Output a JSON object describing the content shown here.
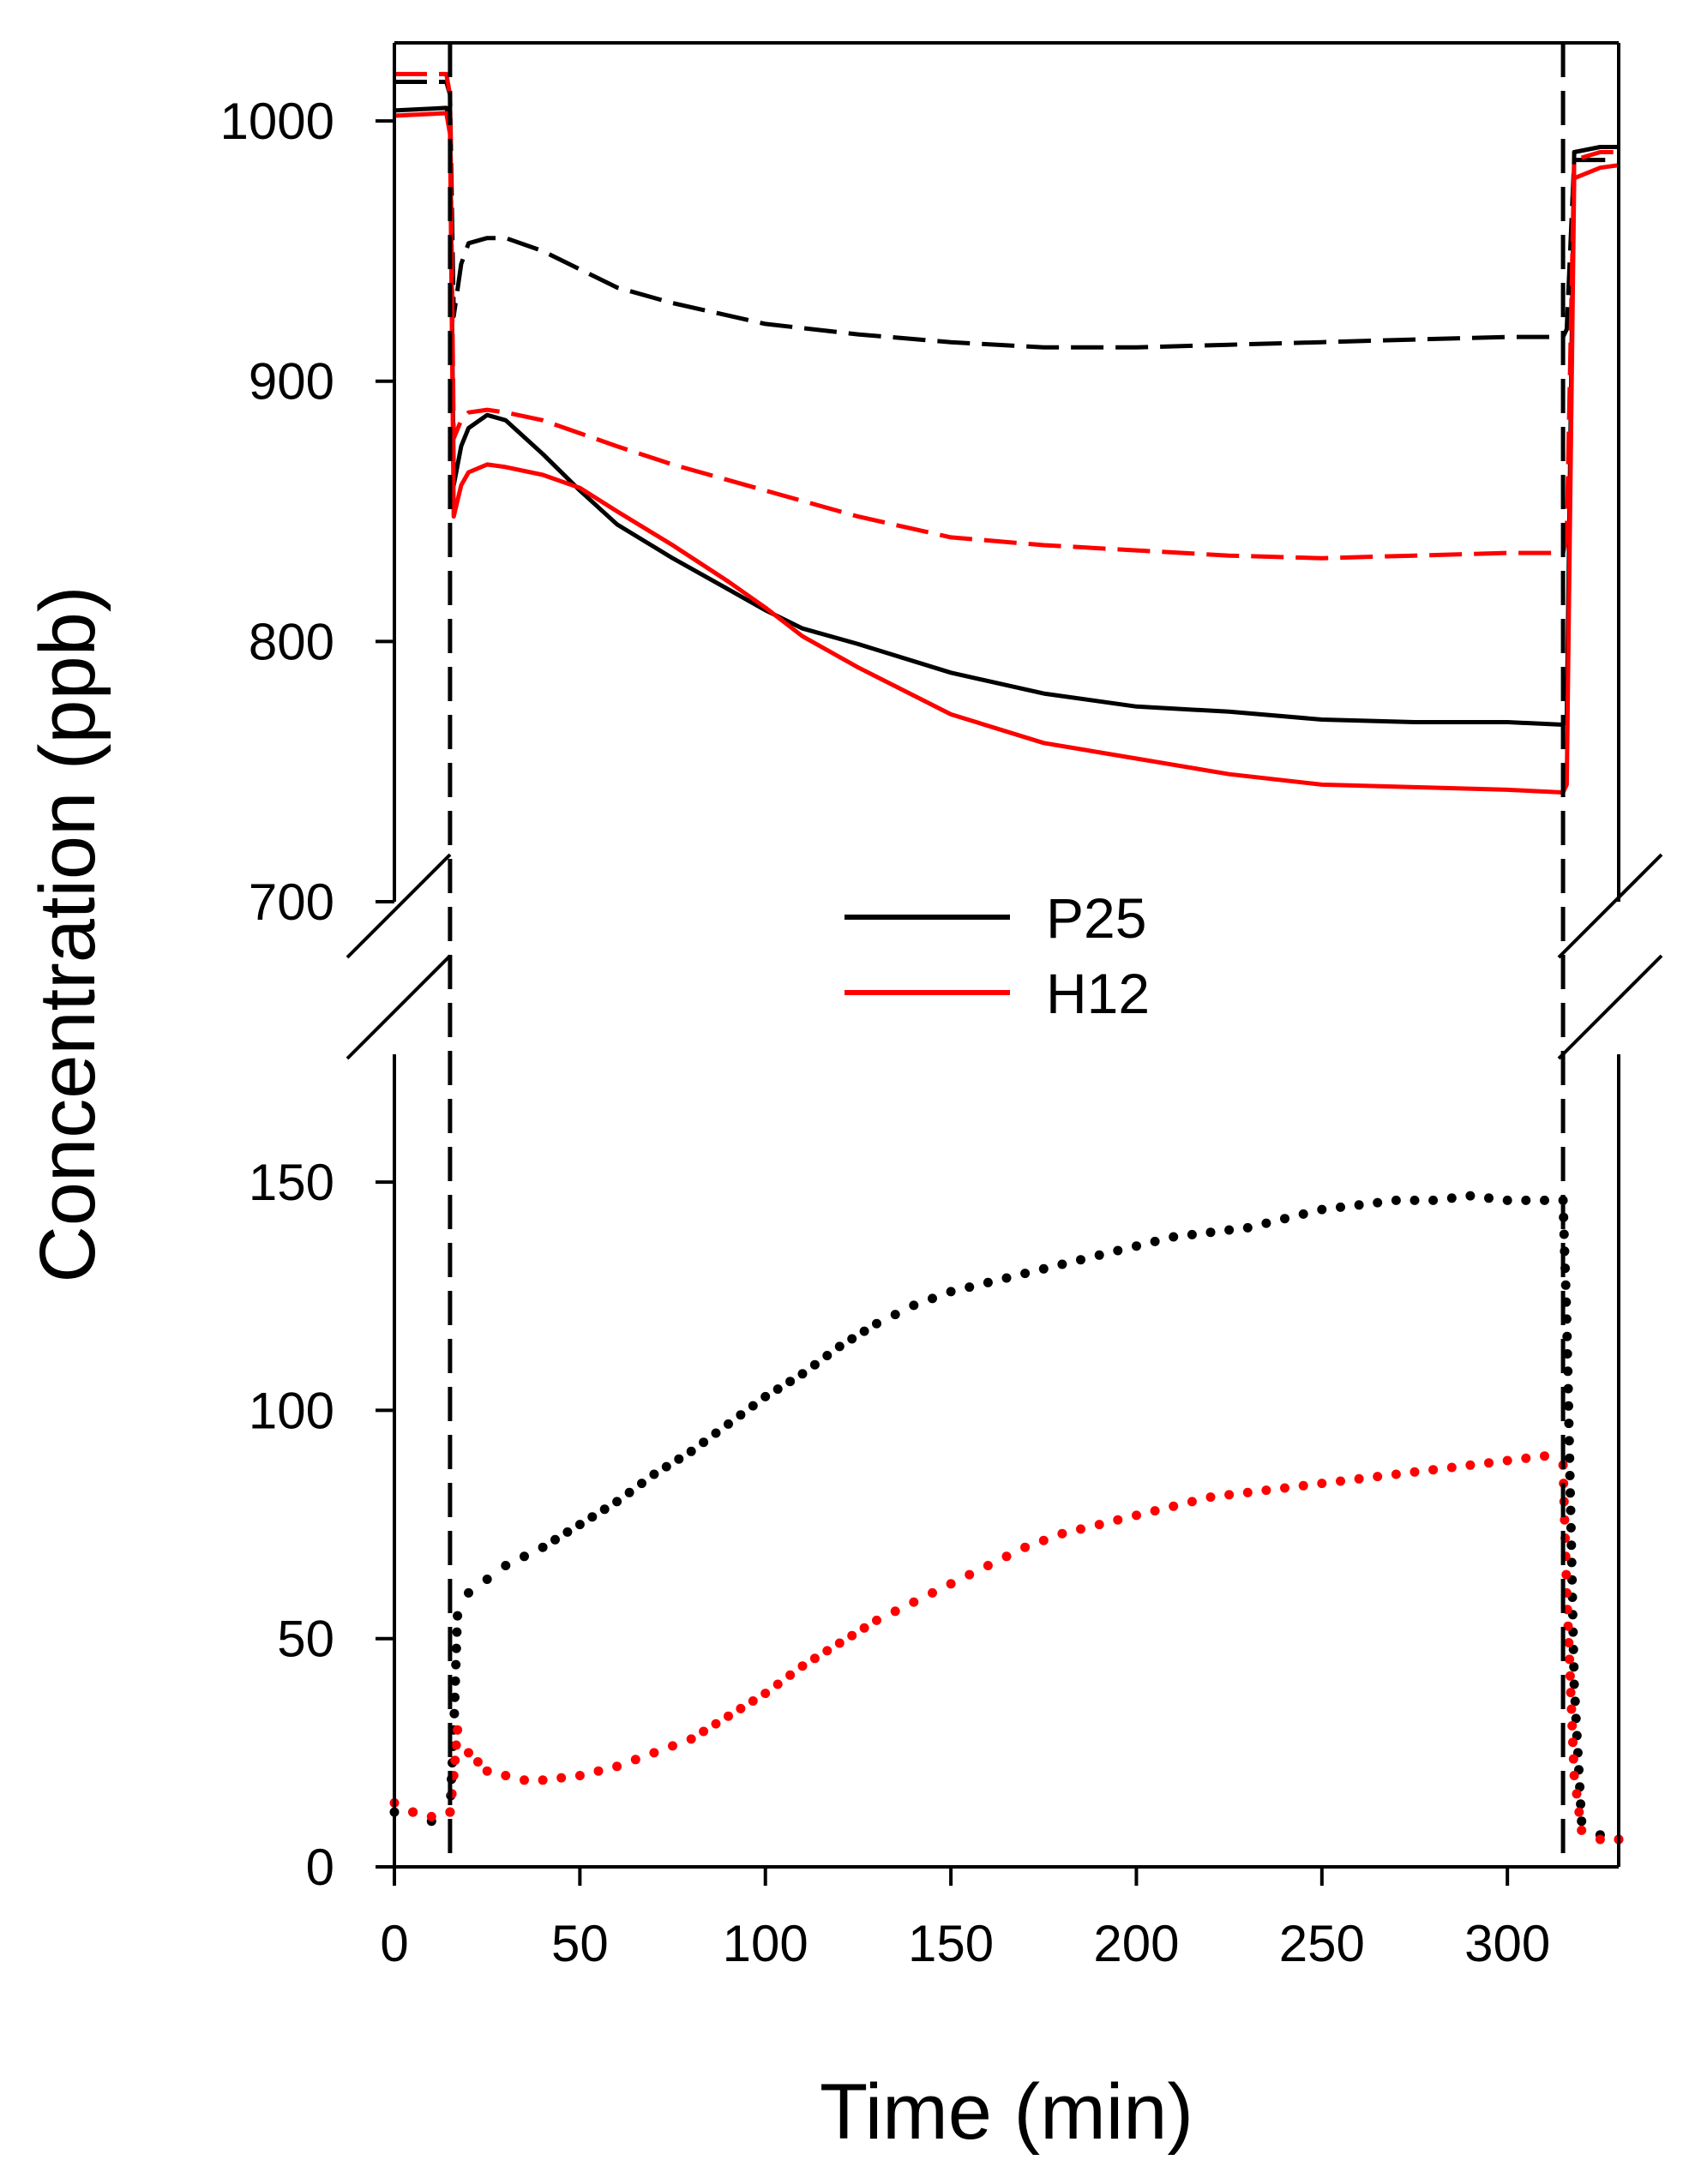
{
  "chart_data": {
    "type": "line",
    "title": "",
    "xlabel": "Time (min)",
    "ylabel": "Concentration (ppb)",
    "xlim": [
      0,
      330
    ],
    "x_ticks": [
      0,
      50,
      100,
      150,
      200,
      250,
      300
    ],
    "x_tick_labels": [
      "0",
      "50",
      "100",
      "150",
      "200",
      "250",
      "300"
    ],
    "y_axis_break": true,
    "upper_panel": {
      "ylim": [
        700,
        1030
      ],
      "y_ticks": [
        700,
        800,
        900,
        1000
      ],
      "y_tick_labels": [
        "700",
        "800",
        "900",
        "1000"
      ]
    },
    "lower_panel": {
      "ylim": [
        0,
        178
      ],
      "y_ticks": [
        0,
        50,
        100,
        150
      ],
      "y_tick_labels": [
        "0",
        "50",
        "100",
        "150"
      ]
    },
    "reference_lines": [
      {
        "x": 15,
        "style": "dashed",
        "color": "#000000"
      },
      {
        "x": 315,
        "style": "dashed",
        "color": "#000000"
      }
    ],
    "legend": {
      "location": "center",
      "entries": [
        {
          "label": "P25",
          "color": "#000000"
        },
        {
          "label": "H12",
          "color": "#ff0000"
        }
      ]
    },
    "series": [
      {
        "name": "P25 upper solid",
        "panel": "upper",
        "color": "#000000",
        "style": "solid",
        "x": [
          0,
          14,
          15,
          16,
          18,
          20,
          25,
          30,
          40,
          50,
          60,
          75,
          90,
          100,
          110,
          125,
          150,
          175,
          200,
          225,
          250,
          275,
          300,
          315,
          316,
          318,
          325,
          330
        ],
        "y": [
          1004,
          1005,
          1000,
          860,
          875,
          882,
          887,
          885,
          872,
          858,
          845,
          832,
          820,
          812,
          805,
          799,
          788,
          780,
          775,
          773,
          770,
          769,
          769,
          768,
          770,
          988,
          990,
          990
        ]
      },
      {
        "name": "P25 upper dashed",
        "panel": "upper",
        "color": "#000000",
        "style": "dashed",
        "x": [
          0,
          14,
          15,
          16,
          18,
          20,
          25,
          30,
          40,
          50,
          60,
          75,
          100,
          125,
          150,
          175,
          200,
          225,
          250,
          275,
          300,
          315,
          316,
          318,
          325,
          330
        ],
        "y": [
          1015,
          1015,
          1010,
          925,
          945,
          953,
          955,
          955,
          950,
          943,
          936,
          930,
          922,
          918,
          915,
          913,
          913,
          914,
          915,
          916,
          917,
          917,
          920,
          985,
          985,
          985
        ]
      },
      {
        "name": "H12 upper solid",
        "panel": "upper",
        "color": "#ff0000",
        "style": "solid",
        "x": [
          0,
          14,
          15,
          16,
          18,
          20,
          25,
          30,
          40,
          50,
          60,
          75,
          90,
          100,
          110,
          125,
          150,
          175,
          200,
          225,
          250,
          275,
          300,
          315,
          316,
          318,
          325,
          330
        ],
        "y": [
          1002,
          1003,
          995,
          848,
          860,
          865,
          868,
          867,
          864,
          859,
          850,
          837,
          823,
          813,
          802,
          790,
          772,
          761,
          755,
          749,
          745,
          744,
          743,
          742,
          745,
          978,
          982,
          983
        ]
      },
      {
        "name": "H12 upper dashed",
        "panel": "upper",
        "color": "#ff0000",
        "style": "dashed",
        "x": [
          0,
          14,
          15,
          16,
          18,
          20,
          25,
          30,
          40,
          50,
          60,
          75,
          100,
          125,
          150,
          175,
          200,
          225,
          250,
          275,
          300,
          315,
          316,
          318,
          325,
          330
        ],
        "y": [
          1018,
          1018,
          1010,
          878,
          885,
          888,
          889,
          888,
          885,
          880,
          875,
          868,
          858,
          848,
          840,
          837,
          835,
          833,
          832,
          833,
          834,
          834,
          840,
          985,
          988,
          988
        ]
      },
      {
        "name": "P25 lower dotted",
        "panel": "lower",
        "color": "#000000",
        "style": "dotted",
        "x": [
          0,
          5,
          10,
          15,
          16,
          17,
          20,
          25,
          30,
          40,
          50,
          60,
          70,
          80,
          90,
          100,
          110,
          120,
          130,
          140,
          150,
          160,
          170,
          180,
          190,
          200,
          210,
          220,
          230,
          240,
          250,
          260,
          270,
          280,
          290,
          300,
          310,
          315,
          316,
          318,
          320,
          325,
          330
        ],
        "y": [
          12,
          12,
          10,
          12,
          30,
          55,
          60,
          63,
          66,
          70,
          75,
          80,
          86,
          91,
          97,
          103,
          108,
          114,
          119,
          123,
          126,
          128,
          130,
          132,
          134,
          136,
          138,
          139,
          140,
          142,
          144,
          145,
          146,
          146,
          147,
          146,
          146,
          146,
          120,
          40,
          10,
          7,
          6
        ]
      },
      {
        "name": "H12 lower dotted",
        "panel": "lower",
        "color": "#ff0000",
        "style": "dotted",
        "x": [
          0,
          5,
          10,
          15,
          16,
          17,
          20,
          25,
          30,
          35,
          40,
          50,
          60,
          70,
          80,
          90,
          100,
          110,
          120,
          130,
          140,
          150,
          160,
          170,
          180,
          190,
          200,
          210,
          220,
          230,
          240,
          250,
          260,
          270,
          280,
          290,
          300,
          310,
          315,
          316,
          318,
          320,
          325,
          330
        ],
        "y": [
          14,
          12,
          11,
          12,
          20,
          30,
          25,
          21,
          20,
          19,
          19,
          20,
          22,
          25,
          28,
          33,
          38,
          44,
          49,
          54,
          58,
          62,
          66,
          70,
          73,
          75,
          77,
          79,
          81,
          82,
          83,
          84,
          85,
          86,
          87,
          88,
          89,
          90,
          88,
          60,
          20,
          8,
          6,
          6
        ]
      }
    ]
  }
}
